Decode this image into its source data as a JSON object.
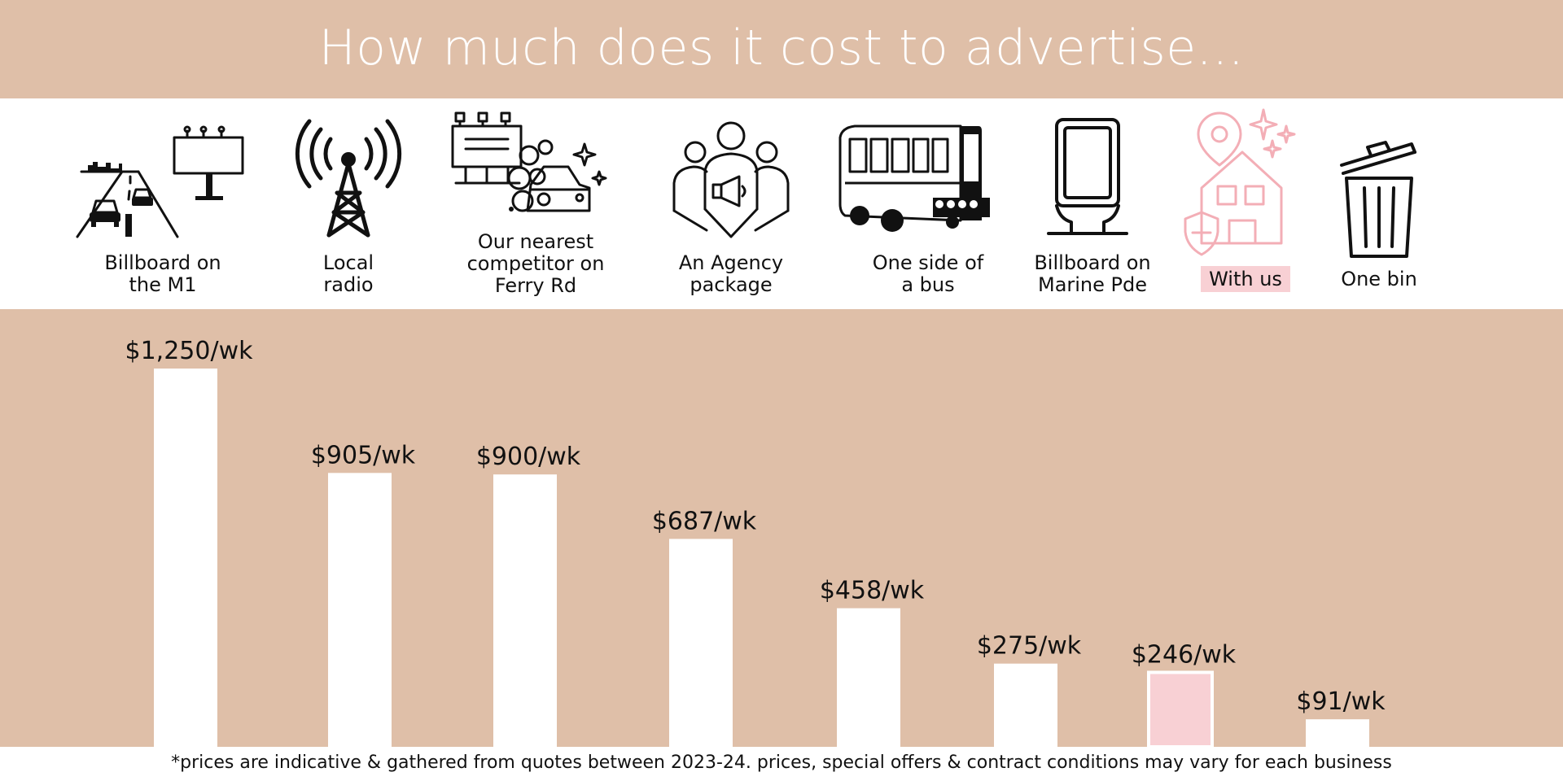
{
  "header": {
    "title": "How much does it cost to advertise..."
  },
  "colors": {
    "tan": "#dfbfa8",
    "white": "#ffffff",
    "highlight": "#f8d0d4",
    "highlight_stroke": "#f3aeb6",
    "ink": "#111111"
  },
  "categories": [
    {
      "lines": [
        "Billboard on",
        "the M1"
      ],
      "icon": "highway-billboard-icon",
      "highlight": false
    },
    {
      "lines": [
        "Local",
        "radio"
      ],
      "icon": "radio-tower-icon",
      "highlight": false
    },
    {
      "lines": [
        "Our nearest",
        "competitor on",
        "Ferry Rd"
      ],
      "icon": "billboard-car-wash-icon",
      "highlight": false
    },
    {
      "lines": [
        "An Agency",
        "package"
      ],
      "icon": "agency-megaphone-icon",
      "highlight": false
    },
    {
      "lines": [
        "One side of",
        "a bus"
      ],
      "icon": "bus-icon",
      "highlight": false
    },
    {
      "lines": [
        "Billboard on",
        "Marine Pde"
      ],
      "icon": "street-kiosk-icon",
      "highlight": false
    },
    {
      "lines": [
        "With us"
      ],
      "icon": "house-location-shield-icon",
      "highlight": true
    },
    {
      "lines": [
        "One bin"
      ],
      "icon": "trash-bin-icon",
      "highlight": false
    }
  ],
  "chart_data": {
    "type": "bar",
    "categories": [
      "Billboard on the M1",
      "Local radio",
      "Our nearest competitor on Ferry Rd",
      "An Agency package",
      "One side of a bus",
      "Billboard on Marine Pde",
      "With us",
      "One bin"
    ],
    "values": [
      1250,
      905,
      900,
      687,
      458,
      275,
      246,
      91
    ],
    "data_labels": [
      "$1,250/wk",
      "$905/wk",
      "$900/wk",
      "$687/wk",
      "$458/wk",
      "$275/wk",
      "$246/wk",
      "$91/wk"
    ],
    "highlight_index": 6,
    "unit": "$/wk",
    "ylim": [
      0,
      1250
    ],
    "grid": false,
    "title": "",
    "xlabel": "",
    "ylabel": ""
  },
  "footnote": "*prices are indicative & gathered from quotes between 2023-24. prices, special offers & contract conditions may vary for each business"
}
